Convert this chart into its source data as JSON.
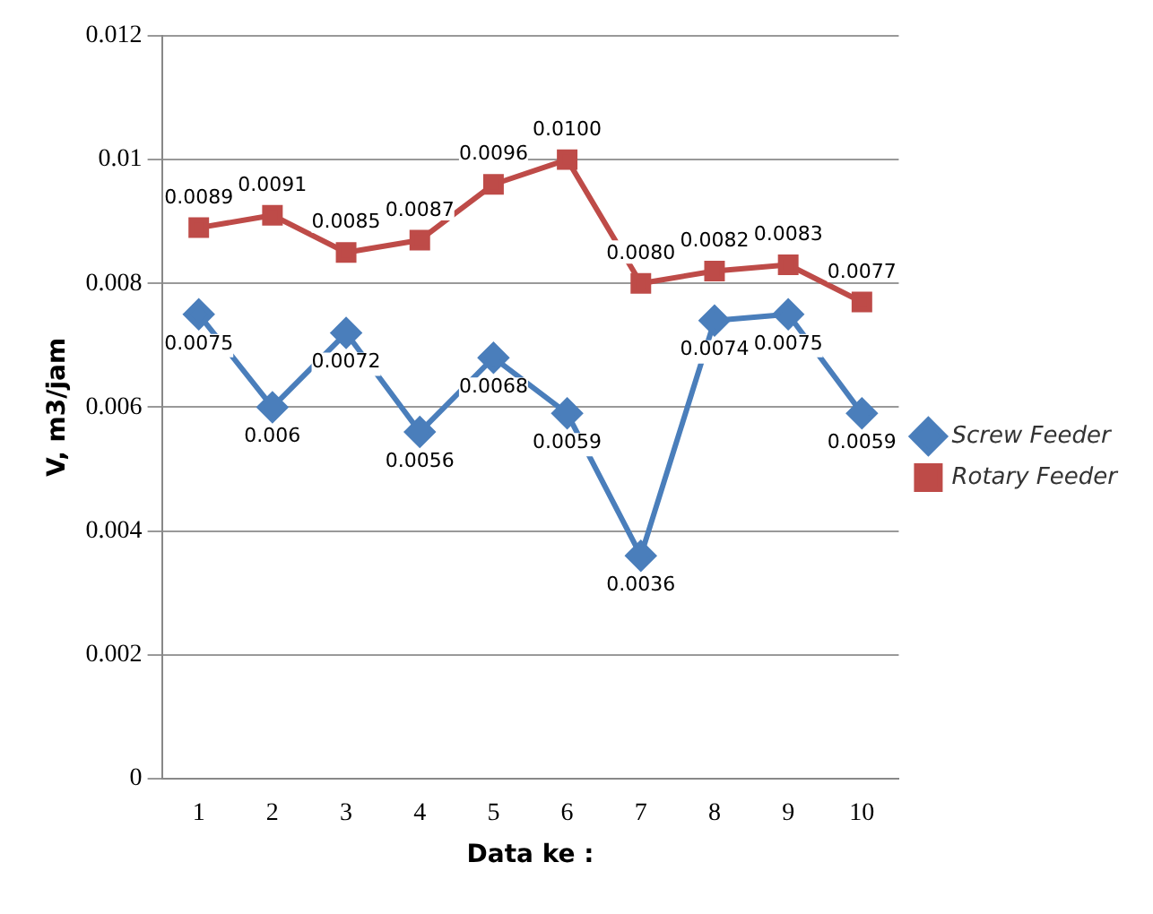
{
  "chart_data": {
    "type": "line",
    "xlabel": "Data ke :",
    "ylabel": "V, m3/jam",
    "categories": [
      "1",
      "2",
      "3",
      "4",
      "5",
      "6",
      "7",
      "8",
      "9",
      "10"
    ],
    "series": [
      {
        "name": "Screw Feeder",
        "color": "#4a7ebb",
        "marker": "diamond",
        "values": [
          0.0075,
          0.006,
          0.0072,
          0.0056,
          0.0068,
          0.0059,
          0.0036,
          0.0074,
          0.0075,
          0.0059
        ],
        "value_labels": [
          "0.0075",
          "0.006",
          "0.0072",
          "0.0056",
          "0.0068",
          "0.0059",
          "0.0036",
          "0.0074",
          "0.0075",
          "0.0059"
        ]
      },
      {
        "name": "Rotary Feeder",
        "color": "#be4b48",
        "marker": "square",
        "values": [
          0.0089,
          0.0091,
          0.0085,
          0.0087,
          0.0096,
          0.01,
          0.008,
          0.0082,
          0.0083,
          0.0077
        ],
        "value_labels": [
          "0.0089",
          "0.0091",
          "0.0085",
          "0.0087",
          "0.0096",
          "0.0100",
          "0.0080",
          "0.0082",
          "0.0083",
          "0.0077"
        ]
      }
    ],
    "ylim": [
      0,
      0.012
    ],
    "yticks": [
      0,
      0.002,
      0.004,
      0.006,
      0.008,
      0.01,
      0.012
    ],
    "grid": "y",
    "legend": "right",
    "line_style": "solid"
  }
}
